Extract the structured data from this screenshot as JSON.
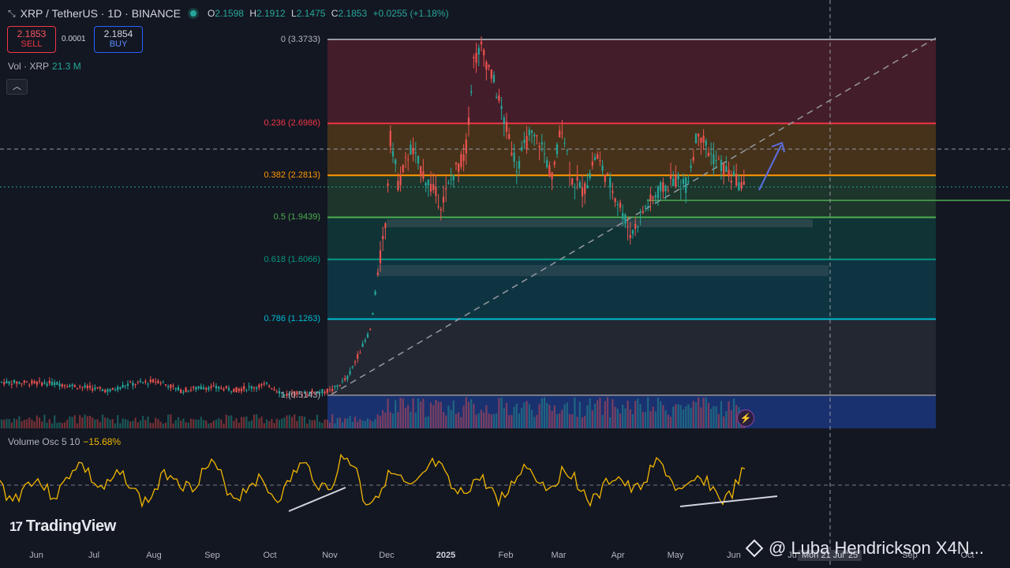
{
  "header": {
    "symbol": "XRP / TetherUS · 1D · BINANCE",
    "ohlc": {
      "o_label": "O",
      "o": "2.1598",
      "h_label": "H",
      "h": "2.1912",
      "l_label": "L",
      "l": "2.1475",
      "c_label": "C",
      "c": "2.1853",
      "change": "+0.0255 (+1.18%)"
    }
  },
  "trade": {
    "sell_price": "2.1853",
    "sell_label": "SELL",
    "spread": "0.0001",
    "buy_price": "2.1854",
    "buy_label": "BUY"
  },
  "volume_legend": {
    "label": "Vol · XRP",
    "value": "21.3 M"
  },
  "oscillator_legend": {
    "label": "Volume Osc 5 10",
    "value": "−15.68%"
  },
  "fib_levels": [
    {
      "label": "0 (3.3733)",
      "price": 3.3733,
      "color": "#9598a1"
    },
    {
      "label": "0.236 (2.6986)",
      "price": 2.6986,
      "color": "#f23645"
    },
    {
      "label": "0.382 (2.2813)",
      "price": 2.2813,
      "color": "#ff9800"
    },
    {
      "label": "0.5 (1.9439)",
      "price": 1.9439,
      "color": "#4caf50"
    },
    {
      "label": "0.618 (1.6066)",
      "price": 1.6066,
      "color": "#089981"
    },
    {
      "label": "0.786 (1.1263)",
      "price": 1.1263,
      "color": "#00bcd4"
    },
    {
      "label": "1 (0.5143)",
      "price": 0.5143,
      "color": "#787b86"
    }
  ],
  "time_axis": [
    {
      "label": "Jun",
      "bold": false
    },
    {
      "label": "Jul",
      "bold": false
    },
    {
      "label": "Aug",
      "bold": false
    },
    {
      "label": "Sep",
      "bold": false
    },
    {
      "label": "Oct",
      "bold": false
    },
    {
      "label": "Nov",
      "bold": false
    },
    {
      "label": "Dec",
      "bold": false
    },
    {
      "label": "2025",
      "bold": true
    },
    {
      "label": "Feb",
      "bold": false
    },
    {
      "label": "Mar",
      "bold": false
    },
    {
      "label": "Apr",
      "bold": false
    },
    {
      "label": "May",
      "bold": false
    },
    {
      "label": "Jun",
      "bold": false
    },
    {
      "label": "Ju",
      "bold": false
    },
    {
      "label": "Sep",
      "bold": false
    },
    {
      "label": "Oct",
      "bold": false
    }
  ],
  "crosshair_time": "Mon 21 Jul '25",
  "branding": {
    "logo_mark": "17",
    "logo_text": "TradingView"
  },
  "watermark": "@ Luba Hendrickson X4N...",
  "colors": {
    "up": "#26a69a",
    "down": "#ef5350",
    "oscillator": "#f2b700",
    "arrow": "#5b6ee1"
  }
}
